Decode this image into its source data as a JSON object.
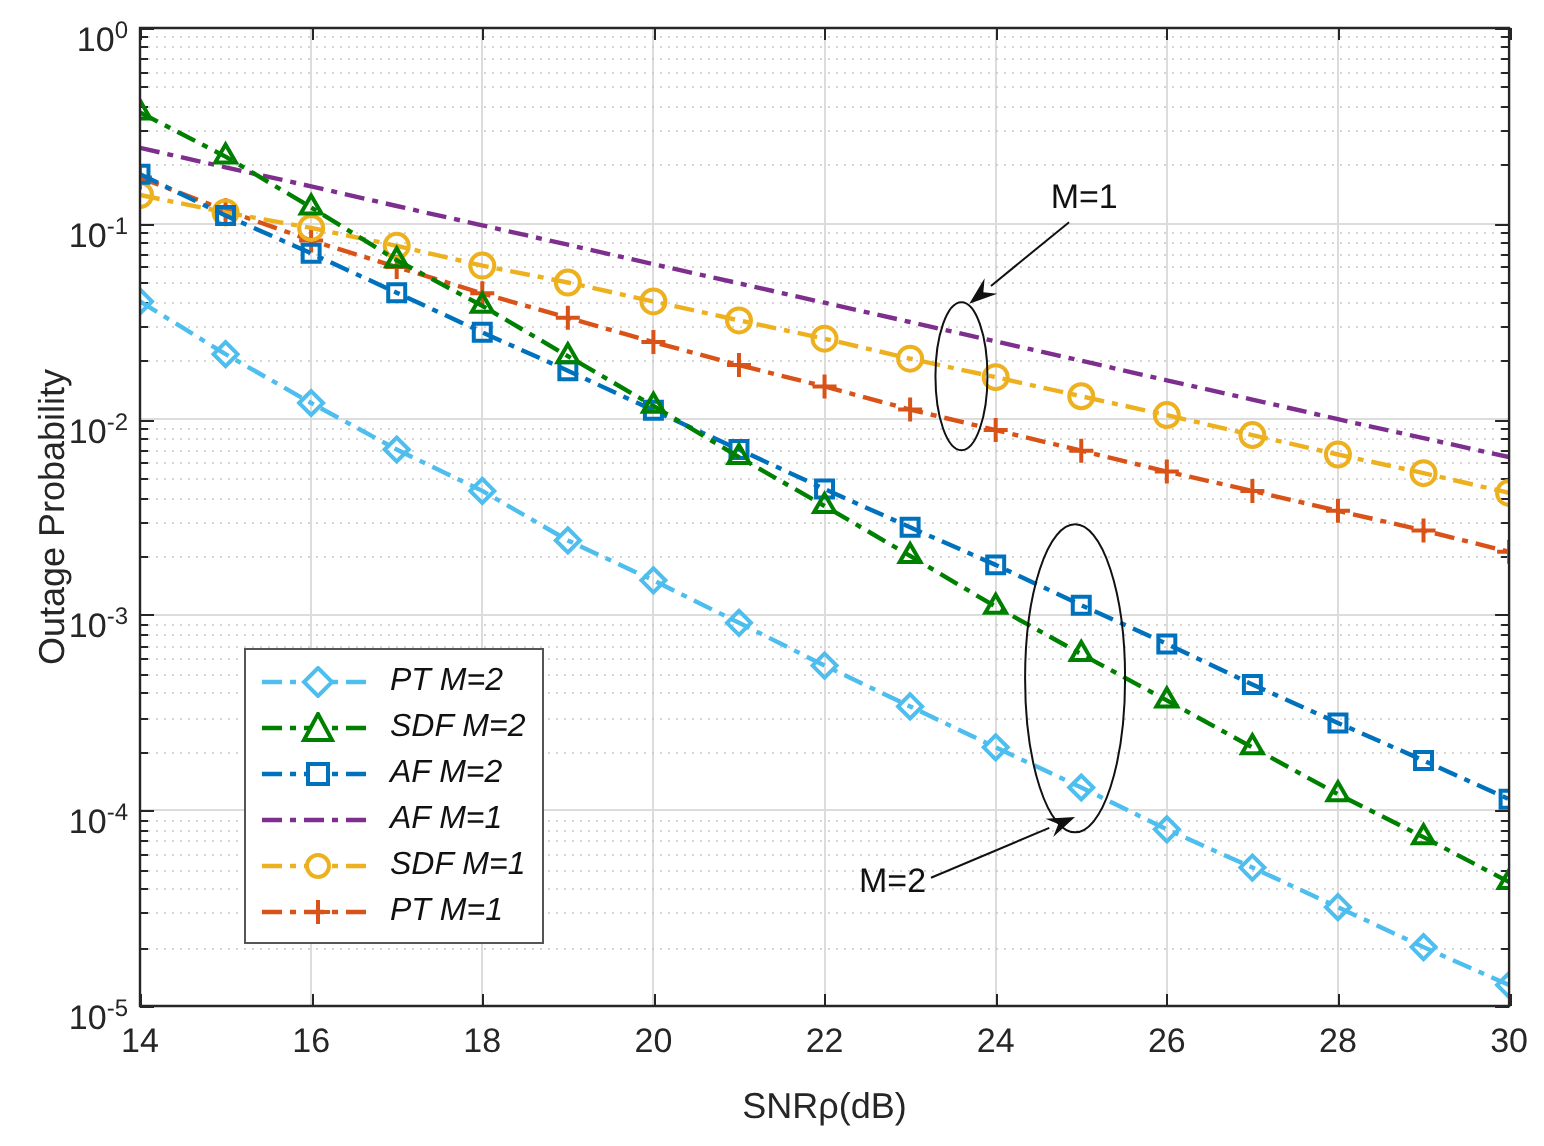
{
  "chart_data": {
    "type": "line",
    "xlabel": "SNRρ(dB)",
    "ylabel": "Outage Probability",
    "log": "y",
    "grid": true,
    "legend": "bottom left",
    "line_style": "dashed",
    "x": [
      14,
      15,
      16,
      17,
      18,
      19,
      20,
      21,
      22,
      23,
      24,
      25,
      26,
      27,
      28,
      29,
      30
    ],
    "xlim": [
      14,
      30
    ],
    "xticks": [
      14,
      16,
      18,
      20,
      22,
      24,
      26,
      28,
      30
    ],
    "ylim": [
      1e-05,
      1
    ],
    "yticks": [
      {
        "value": 1e-05,
        "label": "10$^{-5}$"
      },
      {
        "value": 2e-05,
        "label": null
      },
      {
        "value": 3e-05,
        "label": null
      },
      {
        "value": 4e-05,
        "label": null
      },
      {
        "value": 5e-05,
        "label": null
      },
      {
        "value": 6e-05,
        "label": null
      },
      {
        "value": 7e-05,
        "label": null
      },
      {
        "value": 8e-05,
        "label": null
      },
      {
        "value": 9e-05,
        "label": null
      },
      {
        "value": 0.0001,
        "label": "10$^{-4}$"
      },
      {
        "value": 0.0002,
        "label": null
      },
      {
        "value": 0.0003,
        "label": null
      },
      {
        "value": 0.0004,
        "label": null
      },
      {
        "value": 0.0005,
        "label": null
      },
      {
        "value": 0.0006,
        "label": null
      },
      {
        "value": 0.0007,
        "label": null
      },
      {
        "value": 0.0008,
        "label": null
      },
      {
        "value": 0.0009,
        "label": null
      },
      {
        "value": 0.001,
        "label": "10$^{-3}$"
      },
      {
        "value": 0.002,
        "label": null
      },
      {
        "value": 0.003,
        "label": null
      },
      {
        "value": 0.004,
        "label": null
      },
      {
        "value": 0.005,
        "label": null
      },
      {
        "value": 0.006,
        "label": null
      },
      {
        "value": 0.007,
        "label": null
      },
      {
        "value": 0.008,
        "label": null
      },
      {
        "value": 0.009,
        "label": null
      },
      {
        "value": 0.01,
        "label": "10$^{-2}$"
      },
      {
        "value": 0.02,
        "label": null
      },
      {
        "value": 0.03,
        "label": null
      },
      {
        "value": 0.04,
        "label": null
      },
      {
        "value": 0.05,
        "label": null
      },
      {
        "value": 0.06,
        "label": null
      },
      {
        "value": 0.07,
        "label": null
      },
      {
        "value": 0.08,
        "label": null
      },
      {
        "value": 0.09,
        "label": null
      },
      {
        "value": 0.1,
        "label": "10$^{-1}$"
      },
      {
        "value": 0.2,
        "label": null
      },
      {
        "value": 0.3,
        "label": null
      },
      {
        "value": 0.4,
        "label": null
      },
      {
        "value": 0.5,
        "label": null
      },
      {
        "value": 0.6,
        "label": null
      },
      {
        "value": 0.7,
        "label": null
      },
      {
        "value": 0.8,
        "label": null
      },
      {
        "value": 0.9,
        "label": null
      },
      {
        "value": 1,
        "label": "10$^{0}$"
      }
    ],
    "series": [
      {
        "name": "PT M=2",
        "color": "#4dbeee",
        "marker": "diamond",
        "values": [
          0.04,
          0.0215,
          0.0121,
          0.007,
          0.0043,
          0.0024,
          0.0015,
          0.00091,
          0.00055,
          0.00034,
          0.00021,
          0.000131,
          8e-05,
          5.1e-05,
          3.2e-05,
          2e-05,
          1.28e-05
        ]
      },
      {
        "name": "SDF M=2",
        "color": "#008000",
        "marker": "triangle",
        "values": [
          0.37,
          0.22,
          0.121,
          0.065,
          0.038,
          0.021,
          0.0117,
          0.0064,
          0.0036,
          0.002,
          0.0011,
          0.00063,
          0.000365,
          0.00021,
          0.000121,
          7.3e-05,
          4.3e-05
        ]
      },
      {
        "name": "AF M=2",
        "color": "#0072bd",
        "marker": "square",
        "values": [
          0.179,
          0.11,
          0.0705,
          0.0443,
          0.0278,
          0.0177,
          0.0111,
          0.007,
          0.0044,
          0.0028,
          0.0018,
          0.00112,
          0.00071,
          0.00044,
          0.00028,
          0.00018,
          0.000114
        ]
      },
      {
        "name": "AF M=1",
        "color": "#7e2f8e",
        "marker": "none",
        "values": [
          0.244,
          0.194,
          0.155,
          0.123,
          0.098,
          0.078,
          0.062,
          0.0495,
          0.0394,
          0.0314,
          0.025,
          0.0199,
          0.0158,
          0.0126,
          0.01,
          0.008,
          0.0064
        ]
      },
      {
        "name": "SDF M=1",
        "color": "#edb120",
        "marker": "circle",
        "values": [
          0.14,
          0.114,
          0.095,
          0.077,
          0.061,
          0.05,
          0.04,
          0.032,
          0.0258,
          0.0204,
          0.0164,
          0.0131,
          0.0105,
          0.0083,
          0.0066,
          0.0053,
          0.0042
        ]
      },
      {
        "name": "PT M=1",
        "color": "#d95319",
        "marker": "cross",
        "values": [
          0.172,
          0.117,
          0.082,
          0.06,
          0.044,
          0.033,
          0.0248,
          0.0189,
          0.0147,
          0.0112,
          0.0088,
          0.0069,
          0.0054,
          0.0043,
          0.0034,
          0.0027,
          0.0021
        ]
      }
    ],
    "annotations": [
      "M=1",
      "M=2"
    ]
  }
}
